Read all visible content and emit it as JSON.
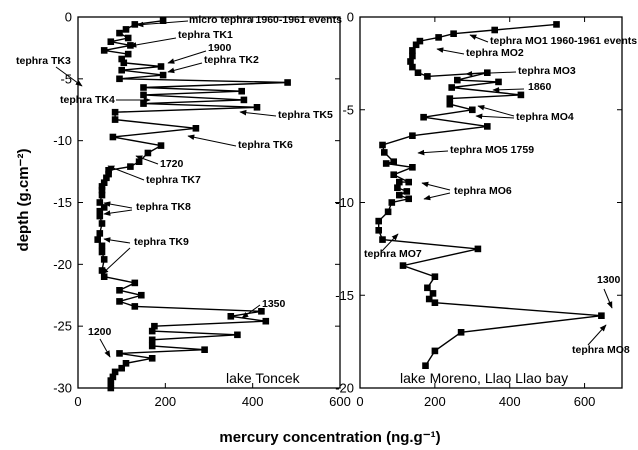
{
  "axis_labels": {
    "xlabel": "mercury concentration (ng.g⁻¹)",
    "ylabel": "depth (g.cm⁻²)"
  },
  "chart_data": [
    {
      "type": "line",
      "panel_label": "lake Toncek",
      "xlim": [
        0,
        600
      ],
      "ylim": [
        -30,
        0
      ],
      "xticks": [
        0,
        200,
        400,
        600
      ],
      "yticks": [
        0,
        -5,
        -10,
        -15,
        -20,
        -25,
        -30
      ],
      "marker": "square",
      "series": [
        {
          "x": [
            195,
            130,
            110,
            95,
            115,
            75,
            120,
            60,
            115,
            100,
            105,
            190,
            100,
            195,
            95,
            480,
            150,
            375,
            150,
            380,
            150,
            410,
            85,
            85,
            270,
            80,
            190,
            160,
            140,
            120,
            70,
            70,
            65,
            60,
            55,
            55,
            55,
            50,
            60,
            50,
            50,
            55,
            50,
            45,
            55,
            55,
            60,
            55,
            60,
            130,
            95,
            145,
            95,
            130,
            420,
            350,
            430,
            175,
            170,
            365,
            170,
            170,
            290,
            95,
            170,
            110,
            100,
            85,
            80,
            75,
            75,
            75
          ],
          "y": [
            -0.3,
            -0.6,
            -1.0,
            -1.3,
            -1.7,
            -2.0,
            -2.3,
            -2.7,
            -3.0,
            -3.4,
            -3.7,
            -4.0,
            -4.3,
            -4.7,
            -5.0,
            -5.3,
            -5.7,
            -6.0,
            -6.3,
            -6.7,
            -7.0,
            -7.3,
            -7.7,
            -8.3,
            -9.0,
            -9.7,
            -10.4,
            -11.0,
            -11.7,
            -12.1,
            -12.4,
            -12.7,
            -13.0,
            -13.4,
            -13.7,
            -14.0,
            -14.4,
            -15.0,
            -15.4,
            -15.7,
            -16.1,
            -16.7,
            -17.5,
            -18.0,
            -18.5,
            -19.0,
            -19.6,
            -20.5,
            -21.0,
            -21.5,
            -22.1,
            -22.5,
            -23.0,
            -23.4,
            -23.8,
            -24.2,
            -24.6,
            -25.0,
            -25.4,
            -25.7,
            -26.1,
            -26.6,
            -26.9,
            -27.2,
            -27.6,
            -28.0,
            -28.4,
            -28.7,
            -29.1,
            -29.4,
            -29.7,
            -30.0
          ]
        }
      ],
      "annotations": [
        {
          "text": "micro tephra 1960-1961 events"
        },
        {
          "text": "tephra TK1"
        },
        {
          "text": "1900"
        },
        {
          "text": "tephra TK2"
        },
        {
          "text": "tephra TK3"
        },
        {
          "text": "tephra TK4"
        },
        {
          "text": "tephra TK5"
        },
        {
          "text": "tephra TK6"
        },
        {
          "text": "1720"
        },
        {
          "text": "tephra TK7"
        },
        {
          "text": "tephra TK8"
        },
        {
          "text": "tephra TK9"
        },
        {
          "text": "1350"
        },
        {
          "text": "1200"
        }
      ]
    },
    {
      "type": "line",
      "panel_label": "lake Moreno, Llao Llao bay",
      "xlim": [
        0,
        700
      ],
      "ylim": [
        -20,
        0
      ],
      "xticks": [
        0,
        200,
        400,
        600
      ],
      "yticks": [
        0,
        -5,
        -10,
        -15,
        -20
      ],
      "marker": "square",
      "series": [
        {
          "x": [
            525,
            360,
            250,
            210,
            160,
            150,
            140,
            140,
            135,
            140,
            155,
            180,
            340,
            260,
            370,
            245,
            430,
            240,
            240,
            300,
            170,
            340,
            140,
            60,
            65,
            90,
            70,
            140,
            90,
            130,
            105,
            100,
            125,
            105,
            130,
            85,
            75,
            50,
            50,
            60,
            315,
            115,
            200,
            180,
            195,
            185,
            200,
            645,
            270,
            200,
            175
          ],
          "y": [
            -0.4,
            -0.7,
            -0.9,
            -1.1,
            -1.3,
            -1.5,
            -1.8,
            -2.1,
            -2.4,
            -2.7,
            -3.0,
            -3.2,
            -3.0,
            -3.4,
            -3.5,
            -3.8,
            -4.2,
            -4.4,
            -4.7,
            -5.0,
            -5.4,
            -5.9,
            -6.4,
            -6.9,
            -7.3,
            -7.8,
            -7.9,
            -8.1,
            -8.5,
            -8.9,
            -8.9,
            -9.2,
            -9.4,
            -9.6,
            -9.8,
            -10.0,
            -10.5,
            -11.0,
            -11.5,
            -12.0,
            -12.5,
            -13.4,
            -14.0,
            -14.6,
            -14.9,
            -15.2,
            -15.4,
            -16.1,
            -17.0,
            -18.0,
            -18.8
          ]
        }
      ],
      "annotations": [
        {
          "text": "tephra MO1 1960-1961 events"
        },
        {
          "text": "tephra MO2"
        },
        {
          "text": "tephra MO3"
        },
        {
          "text": "1860"
        },
        {
          "text": "tephra MO4"
        },
        {
          "text": "tephra MO5 1759"
        },
        {
          "text": "tephra MO6"
        },
        {
          "text": "tephra MO7"
        },
        {
          "text": "1300"
        },
        {
          "text": "tephra MO8"
        }
      ]
    }
  ]
}
